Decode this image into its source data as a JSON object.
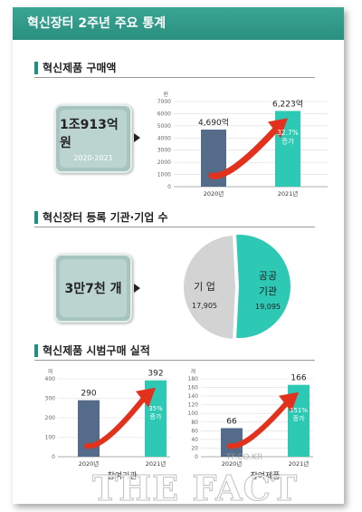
{
  "title": "혁신장터 2주년 주요 통계",
  "sections": {
    "purchase": {
      "heading": "혁신제품 구매액",
      "stat_value": "1조913억 원",
      "stat_sub": "2020-2021"
    },
    "registration": {
      "heading": "혁신장터 등록 기관·기업 수",
      "stat_value": "3만7천 개"
    },
    "trial": {
      "heading": "혁신제품 시범구매 실적"
    }
  },
  "watermark": {
    "text": "THE FACT",
    "url": "TF.CO.KR"
  },
  "colors": {
    "header": "#2a8f7f",
    "bar_2020": "#556b8a",
    "bar_2021": "#2ec9b5",
    "arrow": "#e2311d",
    "pie_gray": "#d3d3d3",
    "pie_teal": "#2ec9b5"
  },
  "chart_data": [
    {
      "type": "bar",
      "unit": "원",
      "categories": [
        "2020년",
        "2021년"
      ],
      "values": [
        4690,
        6223
      ],
      "value_labels": [
        "4,690억",
        "6,223억"
      ],
      "ylim": [
        0,
        7000
      ],
      "yticks": [
        0,
        1000,
        2000,
        3000,
        4000,
        5000,
        6000,
        7000
      ],
      "growth_label": [
        "32.7%",
        "증가"
      ],
      "grid": true
    },
    {
      "type": "pie",
      "slices": [
        {
          "label": "기 업",
          "value": 17905,
          "value_label": "17,905",
          "color": "#d3d3d3"
        },
        {
          "label": "공공",
          "label2": "기관",
          "value": 19095,
          "value_label": "19,095",
          "color": "#2ec9b5"
        }
      ]
    },
    {
      "type": "bar",
      "unit": "개",
      "categories": [
        "2020년",
        "2021년"
      ],
      "values": [
        290,
        392
      ],
      "value_labels": [
        "290",
        "392"
      ],
      "ylim": [
        0,
        400
      ],
      "yticks": [
        0,
        100,
        200,
        300,
        400
      ],
      "growth_label": [
        "35%",
        "증가"
      ],
      "caption": "참여기관",
      "grid": true
    },
    {
      "type": "bar",
      "unit": "개",
      "categories": [
        "2020년",
        "2021년"
      ],
      "values": [
        66,
        166
      ],
      "value_labels": [
        "66",
        "166"
      ],
      "ylim": [
        0,
        180
      ],
      "yticks": [
        0,
        20,
        40,
        60,
        80,
        100,
        120,
        140,
        160,
        180
      ],
      "growth_label": [
        "151%",
        "증가"
      ],
      "caption": "참여제품",
      "grid": true
    }
  ]
}
